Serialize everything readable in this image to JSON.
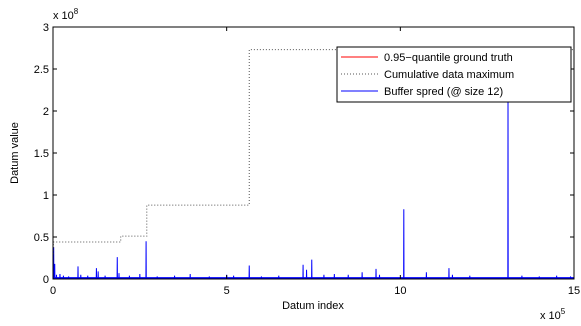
{
  "chart_data": {
    "type": "line",
    "xlabel": "Datum index",
    "ylabel": "Datum value",
    "x_multiplier_label": {
      "base": "x 10",
      "exp": "5"
    },
    "y_multiplier_label": {
      "base": "x 10",
      "exp": "8"
    },
    "xlim": [
      0,
      15
    ],
    "ylim": [
      0,
      3
    ],
    "x_ticks": [
      0,
      5,
      10,
      15
    ],
    "x_tick_labels": [
      "0",
      "5",
      "10",
      "15"
    ],
    "y_ticks": [
      0,
      0.5,
      1,
      1.5,
      2,
      2.5,
      3
    ],
    "y_tick_labels": [
      "0",
      "0.5",
      "1",
      "1.5",
      "2",
      "2.5",
      "3"
    ],
    "grid": false,
    "legend_position": "top-right",
    "colors": {
      "quantile": "#ff0000",
      "cummax": "#555555",
      "buffer": "#0000ff"
    },
    "series": [
      {
        "name": "0.95−quantile ground truth",
        "style": "solid",
        "color": "#ff0000",
        "x": [
          0,
          15
        ],
        "y": [
          0.005,
          0.005
        ]
      },
      {
        "name": "Cumulative data maximum",
        "style": "dotted",
        "color": "#555555",
        "x": [
          0,
          0.01,
          0.01,
          1.95,
          1.95,
          2.7,
          2.7,
          5.65,
          5.65,
          15
        ],
        "y": [
          0.3,
          0.3,
          0.44,
          0.44,
          0.51,
          0.51,
          0.88,
          0.88,
          2.73,
          2.73
        ]
      },
      {
        "name": "Buffer spred (@ size 12)",
        "style": "solid",
        "color": "#0000ff",
        "baseline": 0.01,
        "spikes": [
          [
            0.02,
            0.38
          ],
          [
            0.05,
            0.18
          ],
          [
            0.1,
            0.05
          ],
          [
            0.2,
            0.06
          ],
          [
            0.3,
            0.04
          ],
          [
            0.45,
            0.03
          ],
          [
            0.72,
            0.15
          ],
          [
            0.8,
            0.05
          ],
          [
            1.0,
            0.04
          ],
          [
            1.25,
            0.13
          ],
          [
            1.3,
            0.09
          ],
          [
            1.5,
            0.04
          ],
          [
            1.85,
            0.26
          ],
          [
            1.9,
            0.07
          ],
          [
            2.2,
            0.04
          ],
          [
            2.5,
            0.06
          ],
          [
            2.68,
            0.45
          ],
          [
            3.0,
            0.03
          ],
          [
            3.5,
            0.04
          ],
          [
            3.95,
            0.06
          ],
          [
            4.5,
            0.03
          ],
          [
            5.0,
            0.05
          ],
          [
            5.2,
            0.04
          ],
          [
            5.65,
            0.16
          ],
          [
            6.0,
            0.03
          ],
          [
            6.5,
            0.04
          ],
          [
            7.2,
            0.17
          ],
          [
            7.3,
            0.11
          ],
          [
            7.45,
            0.23
          ],
          [
            7.8,
            0.05
          ],
          [
            8.1,
            0.06
          ],
          [
            8.5,
            0.05
          ],
          [
            8.9,
            0.08
          ],
          [
            9.3,
            0.12
          ],
          [
            9.4,
            0.05
          ],
          [
            10.1,
            0.83
          ],
          [
            10.75,
            0.08
          ],
          [
            11.4,
            0.13
          ],
          [
            11.5,
            0.05
          ],
          [
            12.0,
            0.04
          ],
          [
            13.1,
            2.25
          ],
          [
            13.5,
            0.04
          ],
          [
            14.0,
            0.03
          ],
          [
            14.5,
            0.04
          ],
          [
            14.9,
            0.03
          ]
        ]
      }
    ]
  }
}
